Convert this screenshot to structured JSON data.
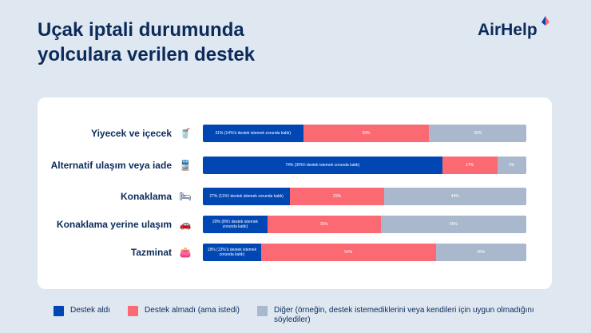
{
  "title_line1": "Uçak iptali durumunda",
  "title_line2": "yolculara verilen destek",
  "logo": "AirHelp",
  "colors": {
    "received": "#0047b3",
    "not_received": "#fb6a73",
    "other": "#a9b8cc"
  },
  "chart_data": {
    "type": "bar",
    "orientation": "horizontal-stacked-100",
    "categories": [
      "Yiyecek ve içecek",
      "Alternatif ulaşım veya iade",
      "Konaklama",
      "Konaklama yerine ulaşım",
      "Tazminat"
    ],
    "icons": [
      "drink-icon",
      "train-icon",
      "bed-icon",
      "car-icon",
      "wallet-icon"
    ],
    "series": [
      {
        "name": "Destek aldı",
        "values": [
          31,
          74,
          27,
          20,
          18
        ],
        "labels": [
          "31% (14%'ü destek istemek zorunda kaldı)",
          "74% (35%'i destek istemek zorunda kaldı)",
          "27% (11%'i destek istemek zorunda kaldı)",
          "20% (8%'i destek istemek zorunda kaldı)",
          "18% (13%'ü destek istemek zorunda kaldı)"
        ]
      },
      {
        "name": "Destek almadı (ama istedi)",
        "values": [
          39,
          17,
          29,
          35,
          54
        ],
        "labels": [
          "39%",
          "17%",
          "29%",
          "35%",
          "54%"
        ]
      },
      {
        "name": "Diğer (örneğin, destek istemediklerini veya kendileri için uygun olmadığını söylediler)",
        "values": [
          30,
          9,
          44,
          45,
          28
        ],
        "labels": [
          "30%",
          "9%",
          "44%",
          "45%",
          "28%"
        ]
      }
    ],
    "xlim": [
      0,
      100
    ],
    "legend": "bottom"
  }
}
